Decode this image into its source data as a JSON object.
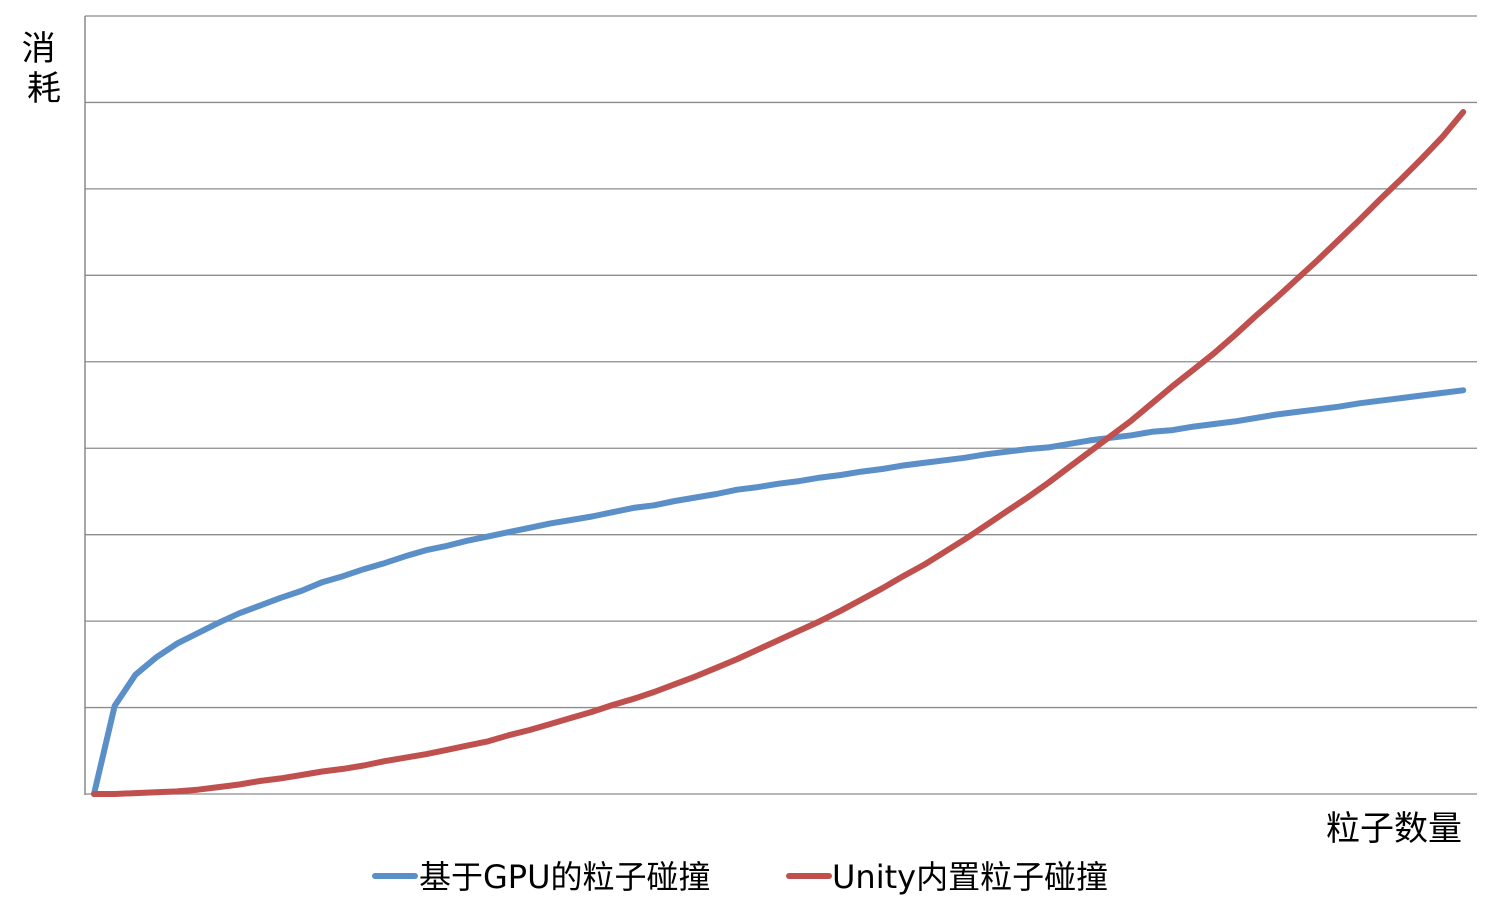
{
  "chart_data": {
    "type": "line",
    "title": "",
    "xlabel": "粒子数量",
    "ylabel": "消耗",
    "xlim": [
      0,
      100
    ],
    "ylim": [
      0,
      900
    ],
    "grid": true,
    "legend_placement": "bottom",
    "x": [
      0,
      1.5,
      3,
      4.5,
      6,
      7.5,
      9,
      10.5,
      12,
      13.5,
      15,
      16.5,
      18,
      19.5,
      21,
      22.5,
      24,
      25.5,
      27,
      28.5,
      30,
      31.5,
      33,
      34.5,
      36,
      37.5,
      39,
      40.5,
      42,
      43.5,
      45,
      46.5,
      48,
      49.5,
      51,
      52.5,
      54,
      55.5,
      57,
      58.5,
      60,
      61.5,
      63,
      64.5,
      66,
      67.5,
      69,
      70.5,
      72,
      73.5,
      75,
      76.5,
      78,
      79.5,
      81,
      82.5,
      84,
      85.5,
      87,
      88.5,
      90,
      91.5,
      93,
      94.5,
      96,
      97.5,
      99
    ],
    "series": [
      {
        "name": "基于GPU的粒子碰撞",
        "color": "#5b8fc7",
        "values": [
          0,
          102,
          138,
          158,
          174,
          186,
          198,
          209,
          218,
          227,
          235,
          245,
          252,
          260,
          267,
          275,
          282,
          287,
          293,
          298,
          303,
          308,
          313,
          317,
          321,
          326,
          331,
          334,
          339,
          343,
          347,
          352,
          355,
          359,
          362,
          366,
          369,
          373,
          376,
          380,
          383,
          386,
          389,
          393,
          396,
          399,
          401,
          405,
          409,
          412,
          415,
          419,
          421,
          425,
          428,
          431,
          435,
          439,
          442,
          445,
          448,
          452,
          455,
          458,
          461,
          464,
          467
        ]
      },
      {
        "name": "Unity内置粒子碰撞",
        "color": "#c0504d",
        "values": [
          0,
          0,
          1,
          2,
          3,
          5,
          8,
          11,
          15,
          18,
          22,
          26,
          29,
          33,
          38,
          42,
          46,
          51,
          56,
          61,
          68,
          74,
          81,
          88,
          95,
          103,
          110,
          118,
          127,
          136,
          146,
          156,
          167,
          178,
          189,
          200,
          212,
          225,
          238,
          252,
          265,
          280,
          295,
          311,
          327,
          343,
          360,
          378,
          396,
          414,
          432,
          452,
          472,
          491,
          510,
          531,
          553,
          574,
          596,
          618,
          641,
          664,
          688,
          711,
          735,
          760,
          789
        ]
      }
    ]
  }
}
